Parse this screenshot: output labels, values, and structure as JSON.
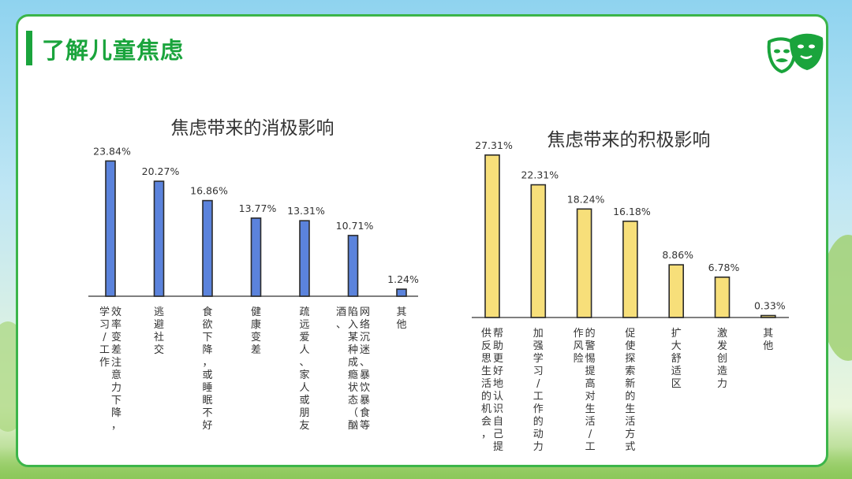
{
  "page": {
    "title": "了解儿童焦虑",
    "icon": "theater-masks-icon",
    "accent_color": "#1aa43c"
  },
  "chart_data": [
    {
      "type": "bar",
      "title": "焦虑带来的消极影响",
      "bar_color": "#5b83dc",
      "ylim": [
        0,
        25
      ],
      "categories": [
        "效率变差注意力下降，学习/工作",
        "逃避社交",
        "食欲下降，或睡眠不好",
        "健康变差",
        "疏远爱人、家人或朋友",
        "网络沉迷、暴饮暴食等陷入某种成瘾状态（酗酒、",
        "其他"
      ],
      "values": [
        23.84,
        20.27,
        16.86,
        13.77,
        13.31,
        10.71,
        1.24
      ],
      "value_labels": [
        "23.84%",
        "20.27%",
        "16.86%",
        "13.77%",
        "13.31%",
        "10.71%",
        "1.24%"
      ]
    },
    {
      "type": "bar",
      "title": "焦虑带来的积极影响",
      "bar_color": "#f7df7a",
      "ylim": [
        0,
        28
      ],
      "categories": [
        "帮助更好地认识自己提供反思生活的机会，",
        "加强学习/工作的动力",
        "的警惕提高对生活/工作风险",
        "促使探索新的生活方式",
        "扩大舒适区",
        "激发创造力",
        "其他"
      ],
      "values": [
        27.31,
        22.31,
        18.24,
        16.18,
        8.86,
        6.78,
        0.33
      ],
      "value_labels": [
        "27.31%",
        "22.31%",
        "18.24%",
        "16.18%",
        "8.86%",
        "6.78%",
        "0.33%"
      ]
    }
  ]
}
